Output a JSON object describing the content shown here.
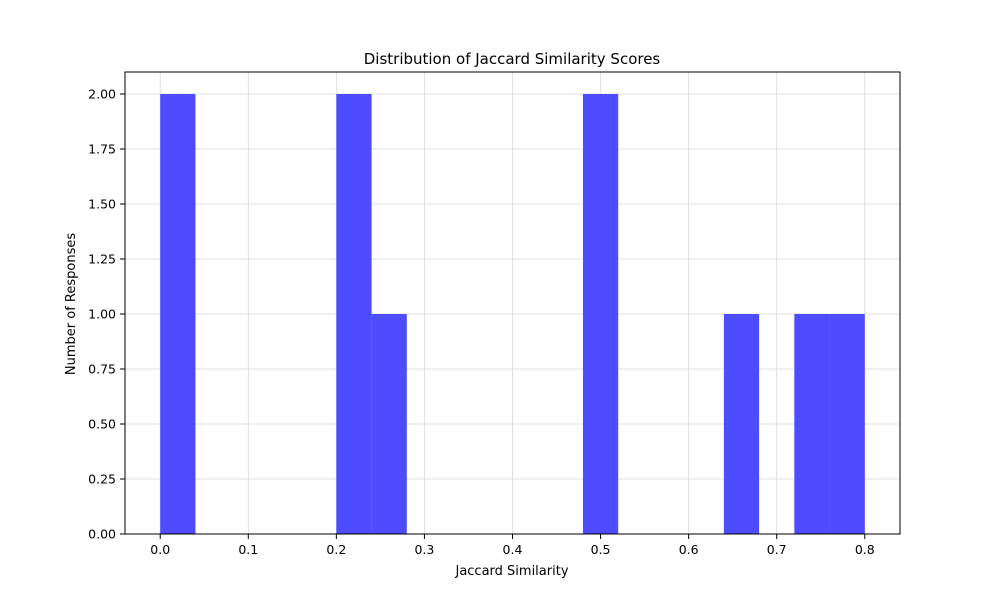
{
  "chart_data": {
    "type": "bar",
    "title": "Distribution of Jaccard Similarity Scores",
    "xlabel": "Jaccard Similarity",
    "ylabel": "Number of Responses",
    "xlim": [
      -0.04,
      0.84
    ],
    "ylim": [
      0,
      2.1
    ],
    "x_ticks": [
      0.0,
      0.1,
      0.2,
      0.3,
      0.4,
      0.5,
      0.6,
      0.7,
      0.8
    ],
    "x_tick_labels": [
      "0.0",
      "0.1",
      "0.2",
      "0.3",
      "0.4",
      "0.5",
      "0.6",
      "0.7",
      "0.8"
    ],
    "y_ticks": [
      0.0,
      0.25,
      0.5,
      0.75,
      1.0,
      1.25,
      1.5,
      1.75,
      2.0
    ],
    "y_tick_labels": [
      "0.00",
      "0.25",
      "0.50",
      "0.75",
      "1.00",
      "1.25",
      "1.50",
      "1.75",
      "2.00"
    ],
    "grid": true,
    "bar_color": "#4d4dff",
    "bins": [
      {
        "start": 0.0,
        "end": 0.04,
        "count": 2
      },
      {
        "start": 0.04,
        "end": 0.08,
        "count": 0
      },
      {
        "start": 0.08,
        "end": 0.12,
        "count": 0
      },
      {
        "start": 0.12,
        "end": 0.16,
        "count": 0
      },
      {
        "start": 0.16,
        "end": 0.2,
        "count": 0
      },
      {
        "start": 0.2,
        "end": 0.24,
        "count": 2
      },
      {
        "start": 0.24,
        "end": 0.28,
        "count": 1
      },
      {
        "start": 0.28,
        "end": 0.32,
        "count": 0
      },
      {
        "start": 0.32,
        "end": 0.36,
        "count": 0
      },
      {
        "start": 0.36,
        "end": 0.4,
        "count": 0
      },
      {
        "start": 0.4,
        "end": 0.44,
        "count": 0
      },
      {
        "start": 0.44,
        "end": 0.48,
        "count": 0
      },
      {
        "start": 0.48,
        "end": 0.52,
        "count": 2
      },
      {
        "start": 0.52,
        "end": 0.56,
        "count": 0
      },
      {
        "start": 0.56,
        "end": 0.6,
        "count": 0
      },
      {
        "start": 0.6,
        "end": 0.64,
        "count": 0
      },
      {
        "start": 0.64,
        "end": 0.68,
        "count": 1
      },
      {
        "start": 0.68,
        "end": 0.72,
        "count": 0
      },
      {
        "start": 0.72,
        "end": 0.76,
        "count": 1
      },
      {
        "start": 0.76,
        "end": 0.8,
        "count": 1
      }
    ]
  }
}
